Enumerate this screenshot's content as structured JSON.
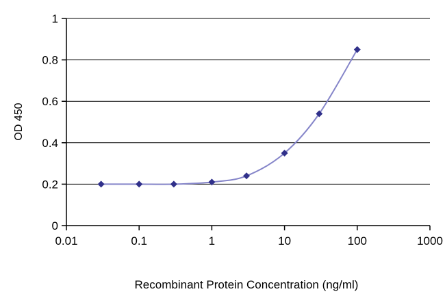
{
  "chart_data": {
    "type": "line",
    "title": "",
    "xlabel": "Recombinant Protein Concentration (ng/ml)",
    "ylabel": "OD 450",
    "x_scale": "log",
    "xlim": [
      0.01,
      1000
    ],
    "ylim": [
      0,
      1
    ],
    "x_ticks": [
      0.01,
      0.1,
      1,
      10,
      100,
      1000
    ],
    "x_tick_labels": [
      "0.01",
      "0.1",
      "1",
      "10",
      "100",
      "1000"
    ],
    "y_ticks": [
      0,
      0.2,
      0.4,
      0.6,
      0.8,
      1
    ],
    "y_tick_labels": [
      "0",
      "0.2",
      "0.4",
      "0.6",
      "0.8",
      "1"
    ],
    "grid": "horizontal",
    "legend": "none",
    "colors": {
      "axis": "#000000",
      "gridline": "#000000",
      "text": "#000000",
      "line": "#8585c9",
      "marker": "#30308a"
    },
    "series": [
      {
        "name": "OD 450",
        "marker": "diamond",
        "x": [
          0.03,
          0.1,
          0.3,
          1,
          3,
          10,
          30,
          100
        ],
        "y": [
          0.2,
          0.2,
          0.2,
          0.21,
          0.24,
          0.35,
          0.54,
          0.85
        ]
      }
    ]
  }
}
